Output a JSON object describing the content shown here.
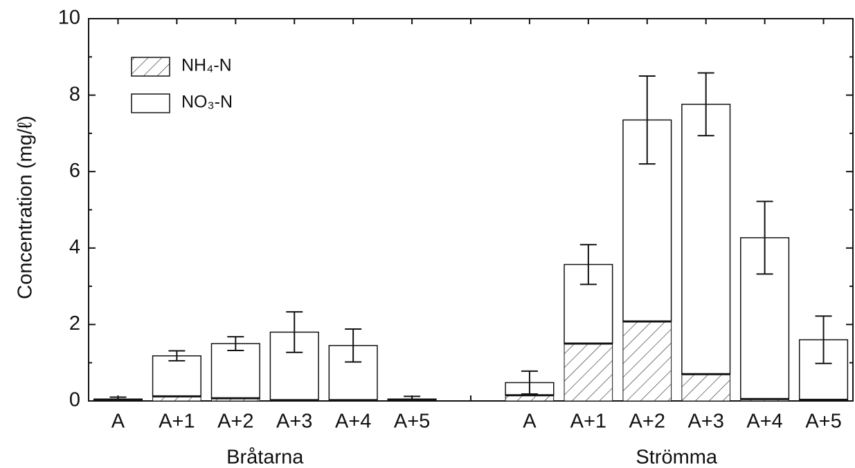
{
  "chart_data": {
    "type": "bar",
    "stacked": true,
    "y_label": "Concentration (mg/ℓ)",
    "categories": [
      "A",
      "A+1",
      "A+2",
      "A+3",
      "A+4",
      "A+5",
      null,
      "A",
      "A+1",
      "A+2",
      "A+3",
      "A+4",
      "A+5"
    ],
    "groups": [
      "Bråtarna",
      "Strömma"
    ],
    "series": [
      {
        "name": "NH₄-N",
        "color": "#ffffff",
        "pattern": "hatch",
        "values": [
          0.03,
          0.12,
          0.07,
          0.02,
          0.02,
          0.03,
          null,
          0.15,
          1.5,
          2.08,
          0.7,
          0.05,
          0.03
        ]
      },
      {
        "name": "NO₃-N",
        "color": "#ffffff",
        "values": [
          0.02,
          1.06,
          1.43,
          1.78,
          1.43,
          0.02,
          null,
          0.33,
          2.07,
          5.27,
          7.06,
          4.22,
          1.57
        ],
        "errors": [
          0.05,
          0.13,
          0.18,
          0.53,
          0.43,
          0.07,
          null,
          0.3,
          0.52,
          1.15,
          0.82,
          0.95,
          0.62
        ]
      }
    ],
    "ylim": [
      0,
      10
    ],
    "yticks": [
      0,
      2,
      4,
      6,
      8,
      10
    ],
    "yminorticks": [
      1,
      3,
      5,
      7,
      9
    ],
    "grid": false,
    "legend": "upper left"
  }
}
